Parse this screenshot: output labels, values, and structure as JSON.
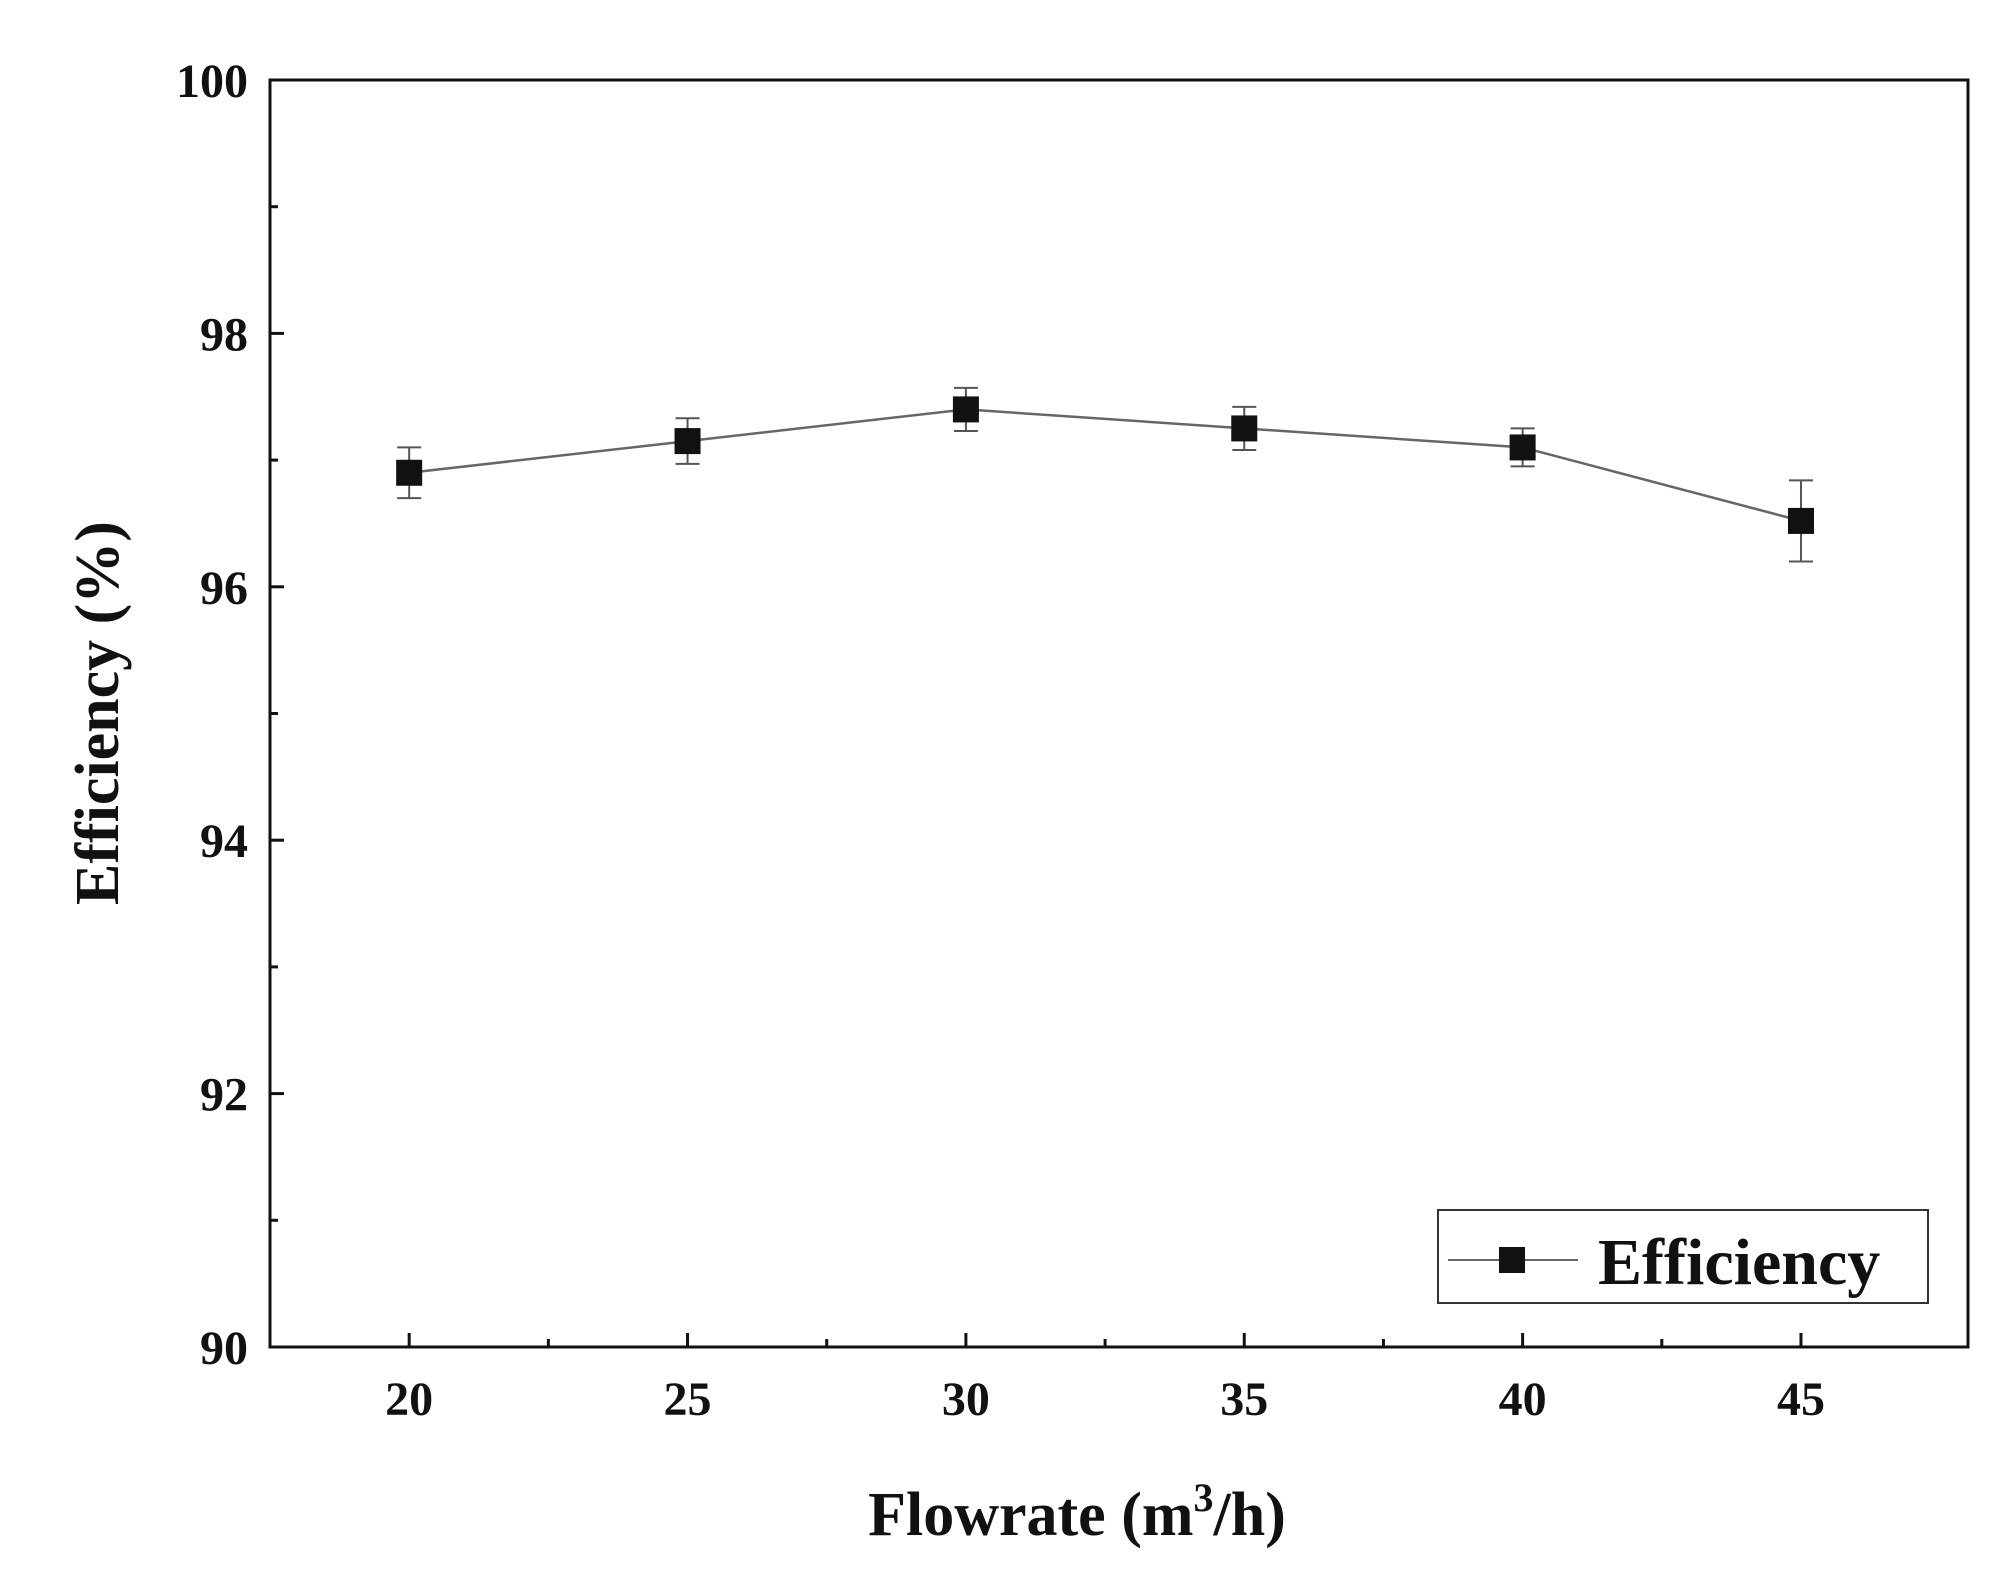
{
  "chart_data": {
    "type": "line",
    "title": "",
    "xlabel": "Flowrate (m/h)",
    "xlabel_parts": {
      "main": "Flowrate (m",
      "superscript": "3",
      "suffix": "/h)"
    },
    "ylabel": "Efficiency (%)",
    "xlim": [
      17.5,
      48
    ],
    "ylim": [
      90,
      100
    ],
    "xticks": [
      20,
      25,
      30,
      35,
      40,
      45
    ],
    "xtick_labels": [
      "20",
      "25",
      "30",
      "35",
      "40",
      "45"
    ],
    "yticks": [
      90,
      92,
      94,
      96,
      98,
      100
    ],
    "ytick_labels": [
      "90",
      "92",
      "94",
      "96",
      "98",
      "100"
    ],
    "grid": false,
    "legend_position": "bottom-right",
    "series": [
      {
        "name": "Efficiency",
        "marker": "square",
        "color": "#111111",
        "line_color": "#666666",
        "x": [
          20,
          25,
          30,
          35,
          40,
          45
        ],
        "y": [
          96.9,
          97.15,
          97.4,
          97.25,
          97.1,
          96.52
        ],
        "error": [
          0.2,
          0.18,
          0.17,
          0.17,
          0.15,
          0.32
        ]
      }
    ]
  }
}
